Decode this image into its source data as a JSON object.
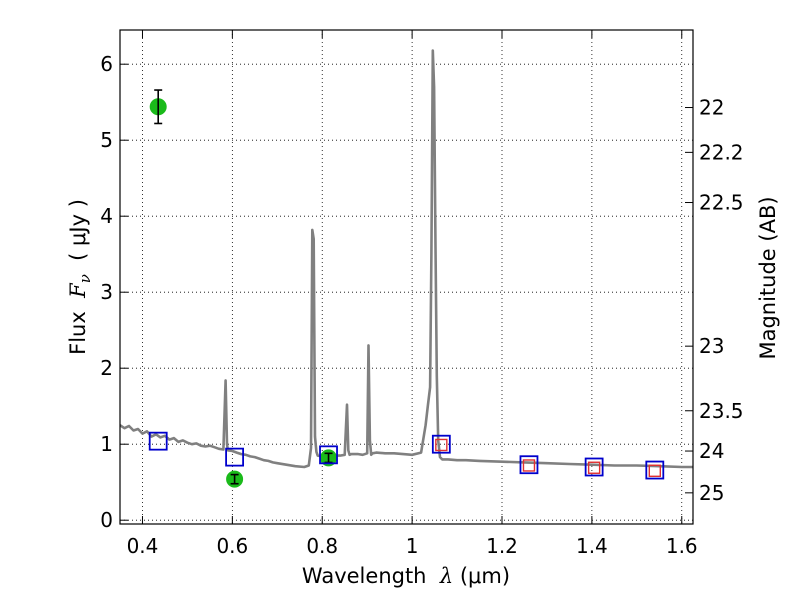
{
  "chart_data": {
    "type": "line",
    "xlabel": {
      "prefix": "Wavelength  ",
      "symbol": "λ",
      "unit": " (μm)"
    },
    "ylabel": {
      "prefix": "Flux  ",
      "symbol": "F",
      "subscript": "ν",
      "unit": "  ( μJy )"
    },
    "y2label": "Magnitude (AB)",
    "xlim": [
      0.35,
      1.625
    ],
    "ylim": [
      -0.05,
      6.45
    ],
    "grid": true,
    "x_ticks": [
      {
        "value": 0.4,
        "label": "0.4"
      },
      {
        "value": 0.6,
        "label": "0.6"
      },
      {
        "value": 0.8,
        "label": "0.8"
      },
      {
        "value": 1.0,
        "label": "1"
      },
      {
        "value": 1.2,
        "label": "1.2"
      },
      {
        "value": 1.4,
        "label": "1.4"
      },
      {
        "value": 1.6,
        "label": "1.6"
      }
    ],
    "y_ticks": [
      {
        "value": 0,
        "label": "0"
      },
      {
        "value": 1,
        "label": "1"
      },
      {
        "value": 2,
        "label": "2"
      },
      {
        "value": 3,
        "label": "3"
      },
      {
        "value": 4,
        "label": "4"
      },
      {
        "value": 5,
        "label": "5"
      },
      {
        "value": 6,
        "label": "6"
      }
    ],
    "y2_ticks": [
      {
        "flux": 5.43,
        "label": "22"
      },
      {
        "flux": 4.84,
        "label": "22.2"
      },
      {
        "flux": 4.18,
        "label": "22.5"
      },
      {
        "flux": 2.29,
        "label": "23"
      },
      {
        "flux": 1.44,
        "label": "23.5"
      },
      {
        "flux": 0.91,
        "label": "24"
      },
      {
        "flux": 0.36,
        "label": "25"
      }
    ],
    "series": [
      {
        "name": "model-sed",
        "kind": "line",
        "color": "#808080",
        "x": [
          0.35,
          0.36,
          0.37,
          0.38,
          0.39,
          0.4,
          0.41,
          0.42,
          0.43,
          0.44,
          0.45,
          0.46,
          0.47,
          0.48,
          0.49,
          0.5,
          0.51,
          0.52,
          0.53,
          0.54,
          0.55,
          0.56,
          0.57,
          0.58,
          0.582,
          0.585,
          0.588,
          0.59,
          0.6,
          0.61,
          0.62,
          0.63,
          0.64,
          0.65,
          0.66,
          0.67,
          0.68,
          0.69,
          0.7,
          0.72,
          0.74,
          0.76,
          0.77,
          0.775,
          0.778,
          0.781,
          0.784,
          0.787,
          0.79,
          0.8,
          0.81,
          0.82,
          0.83,
          0.84,
          0.85,
          0.855,
          0.858,
          0.861,
          0.865,
          0.87,
          0.88,
          0.89,
          0.9,
          0.903,
          0.906,
          0.909,
          0.912,
          0.92,
          0.94,
          0.96,
          0.98,
          1.0,
          1.02,
          1.03,
          1.035,
          1.04,
          1.043,
          1.046,
          1.049,
          1.052,
          1.055,
          1.058,
          1.062,
          1.067,
          1.07,
          1.08,
          1.1,
          1.12,
          1.15,
          1.2,
          1.25,
          1.3,
          1.35,
          1.4,
          1.45,
          1.5,
          1.55,
          1.6,
          1.625
        ],
        "y": [
          1.25,
          1.21,
          1.24,
          1.18,
          1.2,
          1.14,
          1.17,
          1.1,
          1.13,
          1.09,
          1.11,
          1.06,
          1.08,
          1.03,
          1.05,
          1.02,
          1.0,
          1.01,
          0.98,
          0.97,
          0.98,
          0.96,
          0.94,
          0.93,
          1.3,
          1.84,
          1.0,
          0.92,
          0.91,
          0.89,
          0.87,
          0.86,
          0.84,
          0.83,
          0.81,
          0.79,
          0.78,
          0.76,
          0.75,
          0.73,
          0.71,
          0.7,
          0.72,
          0.95,
          3.82,
          3.7,
          1.1,
          0.9,
          0.85,
          0.84,
          0.84,
          0.86,
          0.85,
          0.85,
          0.86,
          1.52,
          0.92,
          0.86,
          0.87,
          0.87,
          0.87,
          0.86,
          0.88,
          2.3,
          1.05,
          0.86,
          0.88,
          0.89,
          0.88,
          0.88,
          0.87,
          0.86,
          0.89,
          1.25,
          1.5,
          1.75,
          3.5,
          6.18,
          5.7,
          3.6,
          1.9,
          1.05,
          0.83,
          0.8,
          0.8,
          0.8,
          0.79,
          0.79,
          0.78,
          0.77,
          0.76,
          0.75,
          0.74,
          0.73,
          0.72,
          0.72,
          0.71,
          0.7,
          0.7
        ]
      },
      {
        "name": "observed-photometry",
        "kind": "points-with-errors",
        "color": "#1aba1a",
        "points": [
          {
            "x": 0.435,
            "y": 5.44,
            "err": 0.22
          },
          {
            "x": 0.605,
            "y": 0.54,
            "err": 0.06
          },
          {
            "x": 0.814,
            "y": 0.82,
            "err": 0.06
          }
        ]
      },
      {
        "name": "model-bandpass-flux",
        "kind": "open-squares",
        "color": "#0000cc",
        "points": [
          {
            "x": 0.435,
            "y": 1.04
          },
          {
            "x": 0.605,
            "y": 0.83
          },
          {
            "x": 0.814,
            "y": 0.86
          },
          {
            "x": 1.065,
            "y": 1.0
          },
          {
            "x": 1.26,
            "y": 0.73
          },
          {
            "x": 1.405,
            "y": 0.7
          },
          {
            "x": 1.54,
            "y": 0.66
          }
        ]
      },
      {
        "name": "upper-limits",
        "kind": "small-squares",
        "color": "#e03030",
        "points": [
          {
            "x": 1.065,
            "y": 0.99
          },
          {
            "x": 1.26,
            "y": 0.72
          },
          {
            "x": 1.405,
            "y": 0.69
          },
          {
            "x": 1.54,
            "y": 0.65
          }
        ]
      }
    ]
  }
}
